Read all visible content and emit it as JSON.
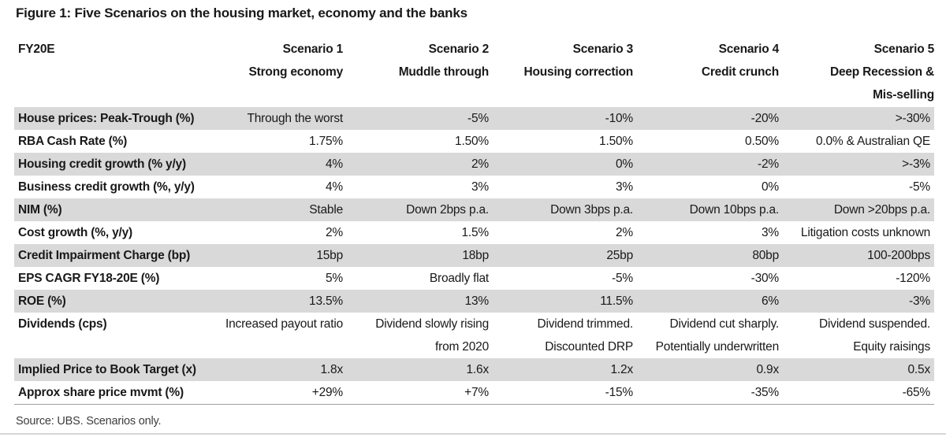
{
  "figure": {
    "title": "Figure 1: Five Scenarios on the housing market, economy and the banks",
    "source": "Source: UBS. Scenarios only."
  },
  "table": {
    "corner_label": "FY20E",
    "columns": [
      {
        "name": "Scenario 1",
        "subtitle": "Strong economy"
      },
      {
        "name": "Scenario 2",
        "subtitle": "Muddle through"
      },
      {
        "name": "Scenario 3",
        "subtitle": "Housing correction"
      },
      {
        "name": "Scenario 4",
        "subtitle": "Credit crunch"
      },
      {
        "name": "Scenario 5",
        "subtitle": "Deep Recession &\nMis-selling"
      }
    ],
    "rows": [
      {
        "label": "House prices: Peak-Trough (%)",
        "shaded": true,
        "values": [
          "Through the worst",
          "-5%",
          "-10%",
          "-20%",
          ">-30%"
        ]
      },
      {
        "label": "RBA Cash Rate (%)",
        "shaded": false,
        "values": [
          "1.75%",
          "1.50%",
          "1.50%",
          "0.50%",
          "0.0% & Australian QE"
        ]
      },
      {
        "label": "Housing credit growth (% y/y)",
        "shaded": true,
        "values": [
          "4%",
          "2%",
          "0%",
          "-2%",
          ">-3%"
        ]
      },
      {
        "label": "Business credit growth (%, y/y)",
        "shaded": false,
        "values": [
          "4%",
          "3%",
          "3%",
          "0%",
          "-5%"
        ]
      },
      {
        "label": "NIM (%)",
        "shaded": true,
        "values": [
          "Stable",
          "Down 2bps p.a.",
          "Down 3bps p.a.",
          "Down 10bps p.a.",
          "Down >20bps p.a."
        ]
      },
      {
        "label": "Cost growth (%, y/y)",
        "shaded": false,
        "values": [
          "2%",
          "1.5%",
          "2%",
          "3%",
          "Litigation costs unknown"
        ]
      },
      {
        "label": "Credit Impairment Charge (bp)",
        "shaded": true,
        "values": [
          "15bp",
          "18bp",
          "25bp",
          "80bp",
          "100-200bps"
        ]
      },
      {
        "label": "EPS CAGR FY18-20E (%)",
        "shaded": false,
        "values": [
          "5%",
          "Broadly flat",
          "-5%",
          "-30%",
          "-120%"
        ]
      },
      {
        "label": "ROE (%)",
        "shaded": true,
        "values": [
          "13.5%",
          "13%",
          "11.5%",
          "6%",
          "-3%"
        ]
      },
      {
        "label": "Dividends (cps)",
        "shaded": false,
        "values": [
          "Increased payout ratio",
          "Dividend slowly rising\nfrom 2020",
          "Dividend trimmed.\nDiscounted DRP",
          "Dividend cut sharply.\nPotentially underwritten",
          "Dividend suspended.\nEquity raisings"
        ]
      },
      {
        "label": "Implied Price to Book Target (x)",
        "shaded": true,
        "values": [
          "1.8x",
          "1.6x",
          "1.2x",
          "0.9x",
          "0.5x"
        ]
      },
      {
        "label": "Approx share price mvmt (%)",
        "shaded": false,
        "values": [
          "+29%",
          "+7%",
          "-15%",
          "-35%",
          "-65%"
        ]
      }
    ]
  },
  "colors": {
    "row_shade": "#d9d9d9",
    "table_rule": "#9e9e9e",
    "bottom_rule": "#d6d6d6",
    "text": "#191919"
  }
}
